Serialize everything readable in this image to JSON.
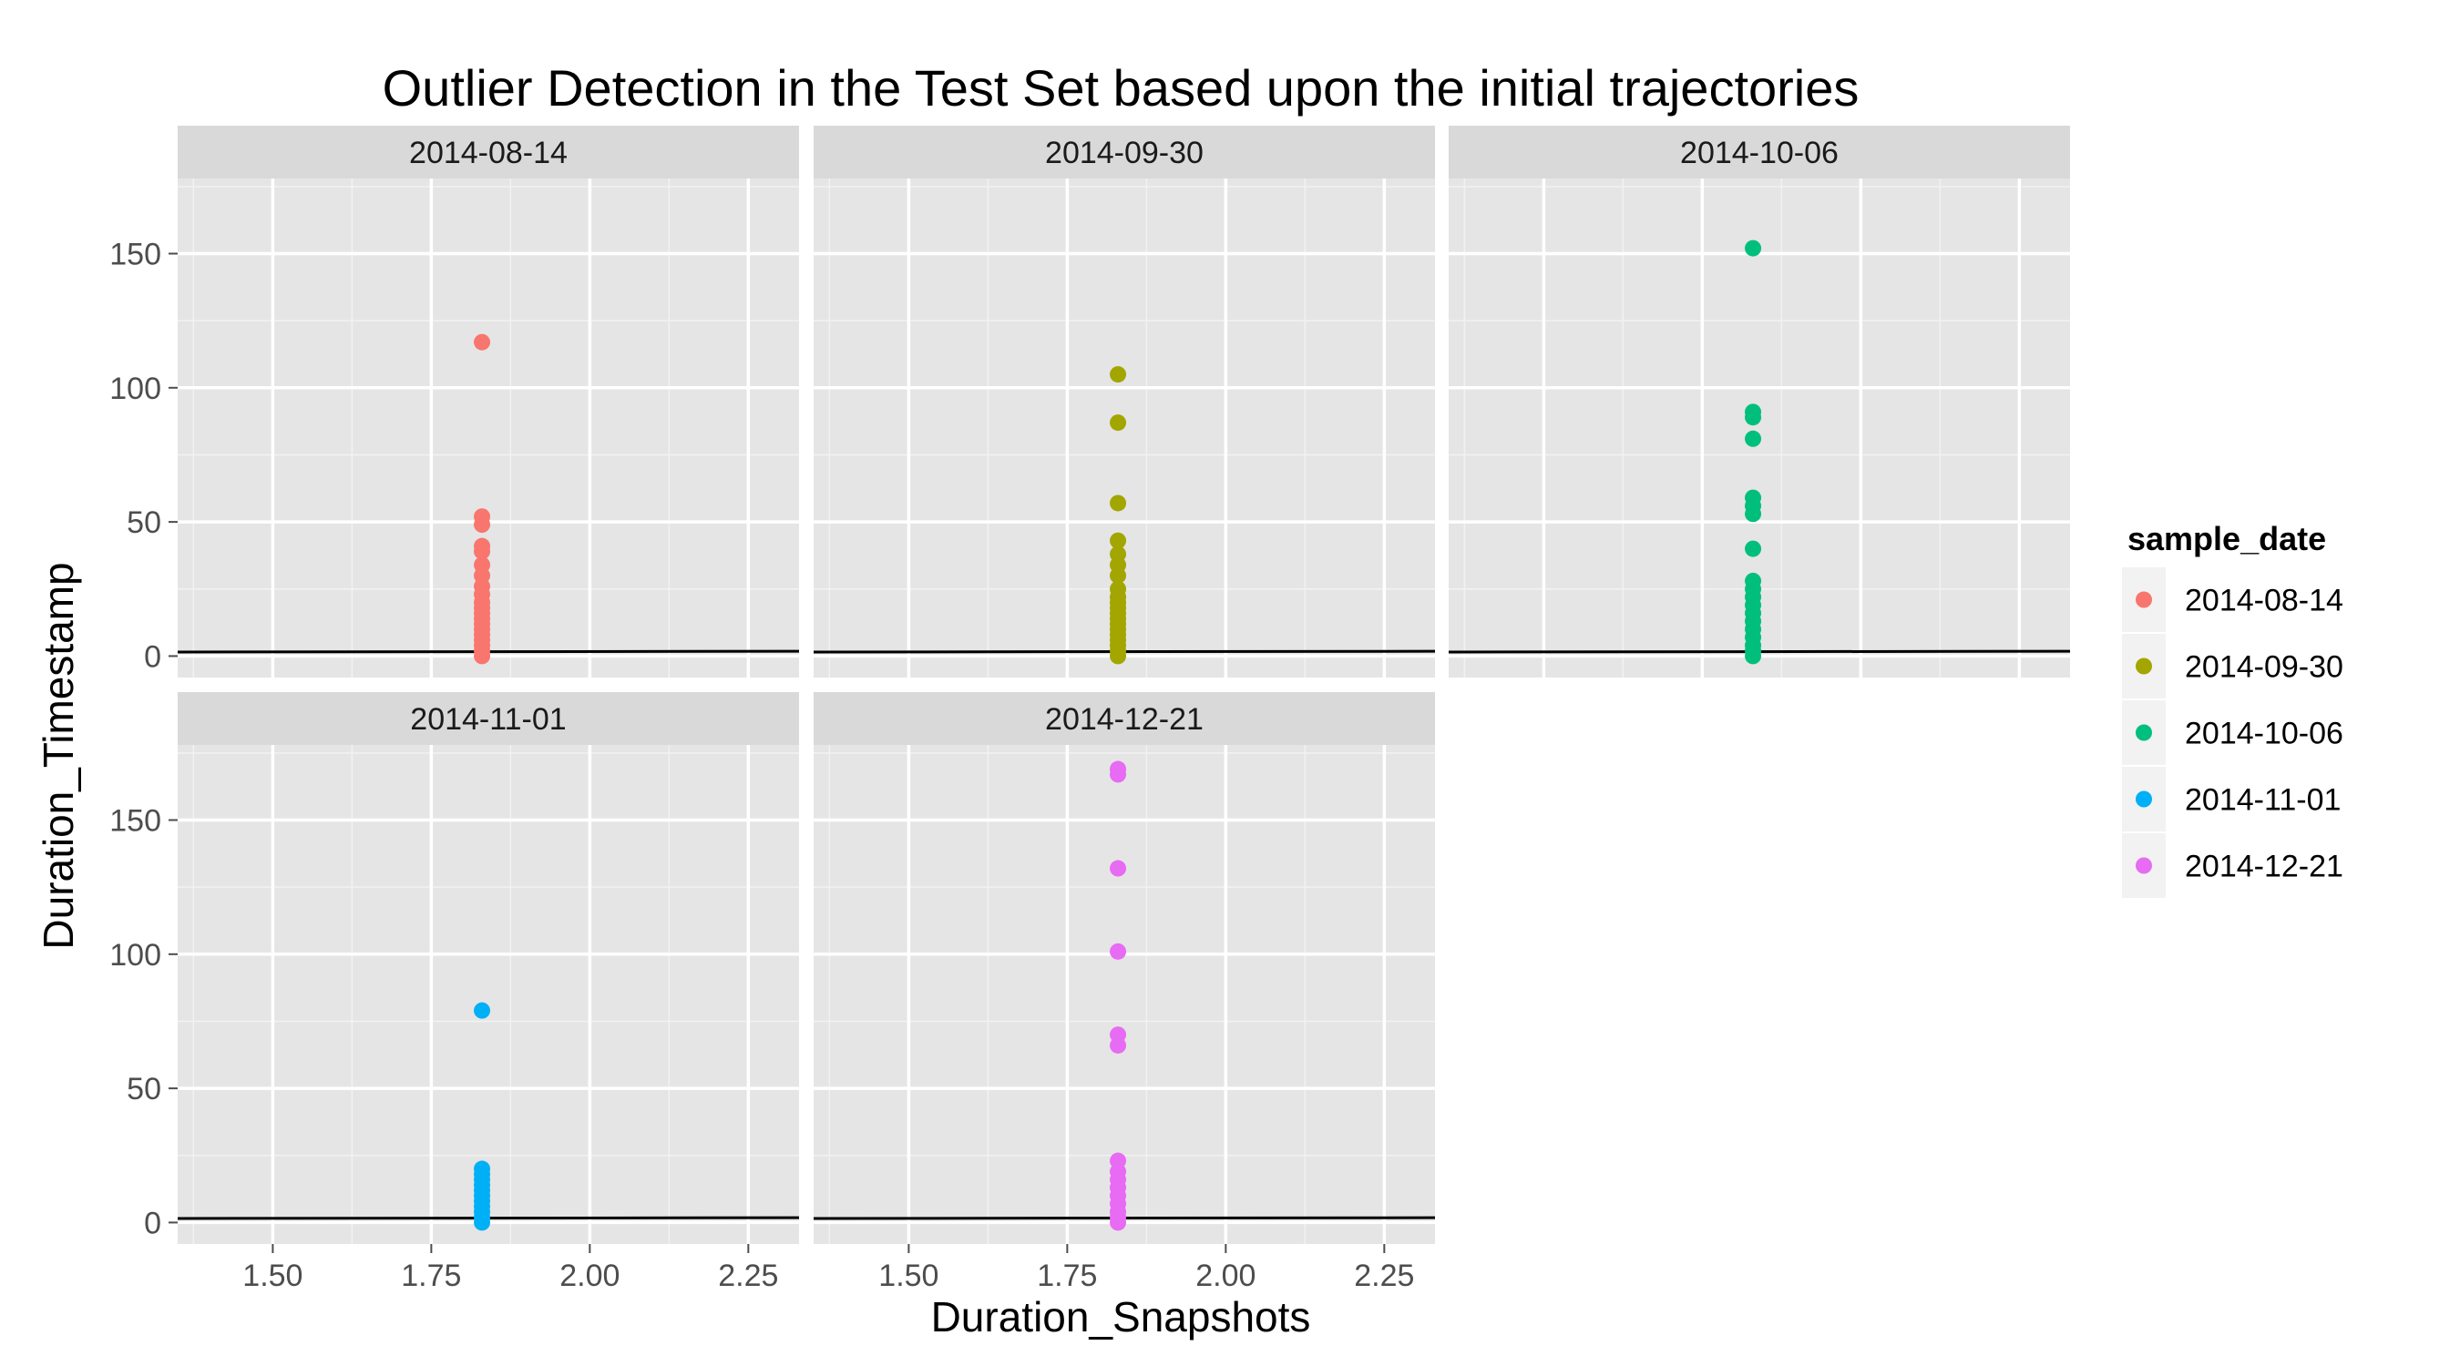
{
  "chart_data": {
    "type": "scatter",
    "title": "Outlier Detection in the Test Set based upon the initial trajectories",
    "xlabel": "Duration_Snapshots",
    "ylabel": "Duration_Timestamp",
    "xlim": [
      1.35,
      2.33
    ],
    "ylim": [
      -8,
      178
    ],
    "x_ticks": [
      1.5,
      1.75,
      2.0,
      2.25
    ],
    "x_tick_labels": [
      "1.50",
      "1.75",
      "2.00",
      "2.25"
    ],
    "y_ticks": [
      0,
      50,
      100,
      150
    ],
    "y_tick_labels": [
      "0",
      "50",
      "100",
      "150"
    ],
    "grid": true,
    "legend": {
      "title": "sample_date",
      "position": "right"
    },
    "facets": [
      {
        "label": "2014-08-14",
        "color": "#F8766D",
        "x": 1.83,
        "y": [
          0,
          2,
          4,
          6,
          8,
          10,
          12,
          14,
          16,
          18,
          20,
          23,
          26,
          30,
          34,
          39,
          41,
          49,
          52,
          117
        ],
        "line": [
          [
            1.35,
            1.5
          ],
          [
            2.33,
            1.8
          ]
        ]
      },
      {
        "label": "2014-09-30",
        "color": "#A3A500",
        "x": 1.83,
        "y": [
          0,
          2,
          4,
          6,
          8,
          10,
          12,
          14,
          16,
          18,
          20,
          22,
          25,
          30,
          34,
          38,
          43,
          57,
          87,
          105
        ],
        "line": [
          [
            1.35,
            1.5
          ],
          [
            2.33,
            1.8
          ]
        ]
      },
      {
        "label": "2014-10-06",
        "color": "#00BF7D",
        "x": 1.83,
        "y": [
          0,
          2,
          4,
          7,
          10,
          13,
          16,
          19,
          22,
          25,
          28,
          40,
          53,
          56,
          59,
          81,
          89,
          91,
          152
        ],
        "line": [
          [
            1.35,
            1.5
          ],
          [
            2.33,
            1.8
          ]
        ]
      },
      {
        "label": "2014-11-01",
        "color": "#00B0F6",
        "x": 1.83,
        "y": [
          0,
          2,
          4,
          6,
          8,
          10,
          12,
          14,
          16,
          18,
          20,
          79
        ],
        "line": [
          [
            1.35,
            1.5
          ],
          [
            2.33,
            1.8
          ]
        ]
      },
      {
        "label": "2014-12-21",
        "color": "#E76BF3",
        "x": 1.83,
        "y": [
          0,
          2,
          4,
          7,
          10,
          13,
          16,
          19,
          23,
          66,
          70,
          101,
          132,
          167,
          169
        ],
        "line": [
          [
            1.35,
            1.5
          ],
          [
            2.33,
            1.8
          ]
        ]
      }
    ]
  }
}
